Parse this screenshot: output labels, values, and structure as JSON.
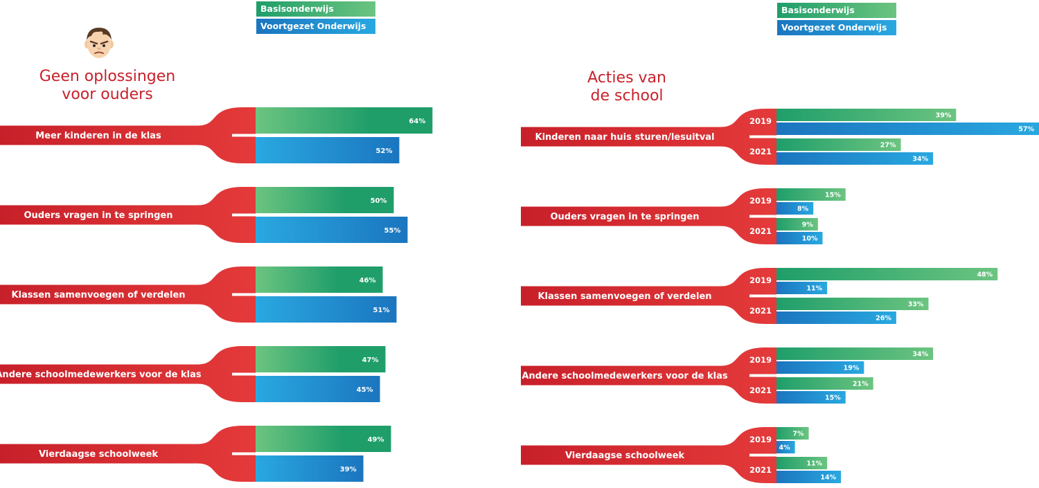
{
  "colors": {
    "red": "#c8202a",
    "red_light": "#e43a3a",
    "green_dark": "#1f9e6a",
    "green_light": "#6cc480",
    "blue_dark": "#1b75bf",
    "blue_light": "#29a8e0"
  },
  "avatar_icon": "angry-face-icon",
  "legend": {
    "left": {
      "primary": "Basisonderwijs",
      "secondary": "Voortgezet Onderwijs"
    },
    "right": {
      "primary": "Basisonderwijs",
      "secondary": "Voortgezet Onderwijs"
    }
  },
  "chart_data": [
    {
      "type": "bar",
      "title": "Geen oplossingen voor ouders",
      "title_lines": [
        "Geen oplossingen",
        "voor ouders"
      ],
      "categories": [
        "Meer kinderen in de klas",
        "Ouders vragen in te springen",
        "Klassen samenvoegen of verdelen",
        "Andere schoolmedewerkers voor de klas",
        "Vierdaagse schoolweek"
      ],
      "series": [
        {
          "name": "Basisonderwijs",
          "values": [
            64,
            50,
            46,
            47,
            49
          ]
        },
        {
          "name": "Voortgezet Onderwijs",
          "values": [
            52,
            55,
            51,
            45,
            39
          ]
        }
      ],
      "unit": "%"
    },
    {
      "type": "bar",
      "title": "Acties van de school",
      "title_lines": [
        "Acties van",
        "de school"
      ],
      "categories": [
        "Kinderen naar huis sturen/lesuitval",
        "Ouders vragen in te springen",
        "Klassen samenvoegen of verdelen",
        "Andere schoolmedewerkers voor de klas",
        "Vierdaagse schoolweek"
      ],
      "years": [
        "2019",
        "2021"
      ],
      "series": [
        {
          "name": "Basisonderwijs",
          "year": "2019",
          "values": [
            39,
            15,
            48,
            34,
            7
          ]
        },
        {
          "name": "Voortgezet Onderwijs",
          "year": "2019",
          "values": [
            57,
            8,
            11,
            19,
            4
          ]
        },
        {
          "name": "Basisonderwijs",
          "year": "2021",
          "values": [
            27,
            9,
            33,
            21,
            11
          ]
        },
        {
          "name": "Voortgezet Onderwijs",
          "year": "2021",
          "values": [
            34,
            10,
            26,
            15,
            14
          ]
        }
      ],
      "unit": "%"
    }
  ]
}
